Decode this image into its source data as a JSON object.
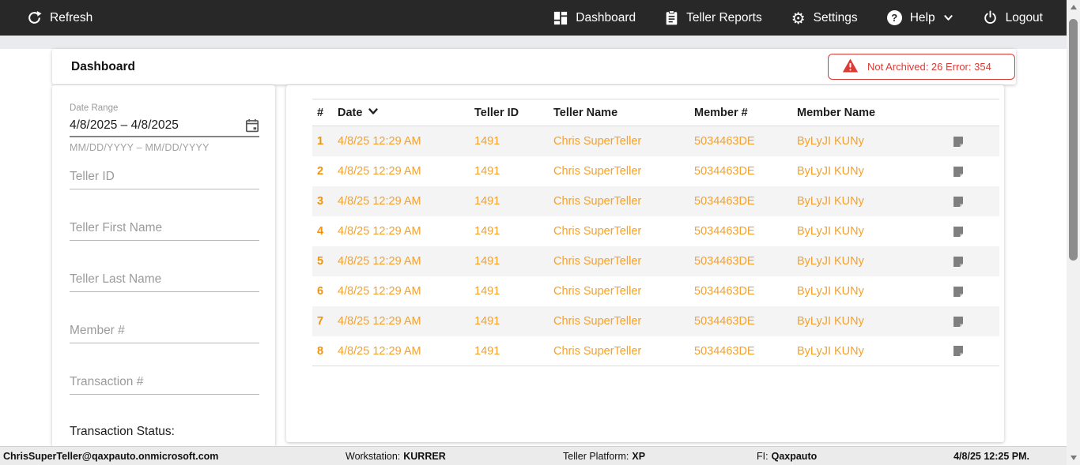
{
  "colors": {
    "nav_bg": "#282828",
    "accent_orange": "#f5a12b",
    "row_number_orange": "#f0930c",
    "alert_red": "#d93a34"
  },
  "nav": {
    "refresh_label": "Refresh",
    "items": [
      {
        "label": "Dashboard",
        "icon": "dashboard-grid-icon"
      },
      {
        "label": "Teller Reports",
        "icon": "clipboard-icon"
      },
      {
        "label": "Settings",
        "icon": "gear-icon"
      },
      {
        "label": "Help",
        "icon": "help-circle-icon"
      },
      {
        "label": "Logout",
        "icon": "power-icon"
      }
    ]
  },
  "header": {
    "title": "Dashboard",
    "alert_text": "Not Archived: 26  Error: 354"
  },
  "filters": {
    "date_range": {
      "label": "Date Range",
      "value": "4/8/2025 – 4/8/2025",
      "hint": "MM/DD/YYYY – MM/DD/YYYY"
    },
    "fields": [
      {
        "placeholder": "Teller ID"
      },
      {
        "placeholder": "Teller First Name"
      },
      {
        "placeholder": "Teller Last Name"
      },
      {
        "placeholder": "Member #"
      },
      {
        "placeholder": "Transaction #"
      }
    ],
    "transaction_status_label": "Transaction Status:"
  },
  "table": {
    "columns": [
      "#",
      "Date",
      "Teller ID",
      "Teller Name",
      "Member #",
      "Member Name"
    ],
    "sorted_column": "Date",
    "sort_direction": "desc",
    "rows": [
      {
        "num": "1",
        "date": "4/8/25 12:29 AM",
        "teller_id": "1491",
        "teller_name": "Chris SuperTeller",
        "member_num": "5034463DE",
        "member_name": "ByLyJI KUNy"
      },
      {
        "num": "2",
        "date": "4/8/25 12:29 AM",
        "teller_id": "1491",
        "teller_name": "Chris SuperTeller",
        "member_num": "5034463DE",
        "member_name": "ByLyJI KUNy"
      },
      {
        "num": "3",
        "date": "4/8/25 12:29 AM",
        "teller_id": "1491",
        "teller_name": "Chris SuperTeller",
        "member_num": "5034463DE",
        "member_name": "ByLyJI KUNy"
      },
      {
        "num": "4",
        "date": "4/8/25 12:29 AM",
        "teller_id": "1491",
        "teller_name": "Chris SuperTeller",
        "member_num": "5034463DE",
        "member_name": "ByLyJI KUNy"
      },
      {
        "num": "5",
        "date": "4/8/25 12:29 AM",
        "teller_id": "1491",
        "teller_name": "Chris SuperTeller",
        "member_num": "5034463DE",
        "member_name": "ByLyJI KUNy"
      },
      {
        "num": "6",
        "date": "4/8/25 12:29 AM",
        "teller_id": "1491",
        "teller_name": "Chris SuperTeller",
        "member_num": "5034463DE",
        "member_name": "ByLyJI KUNy"
      },
      {
        "num": "7",
        "date": "4/8/25 12:29 AM",
        "teller_id": "1491",
        "teller_name": "Chris SuperTeller",
        "member_num": "5034463DE",
        "member_name": "ByLyJI KUNy"
      },
      {
        "num": "8",
        "date": "4/8/25 12:29 AM",
        "teller_id": "1491",
        "teller_name": "Chris SuperTeller",
        "member_num": "5034463DE",
        "member_name": "ByLyJI KUNy"
      }
    ]
  },
  "status_bar": {
    "user": "ChrisSuperTeller@qaxpauto.onmicrosoft.com",
    "workstation_label": "Workstation:",
    "workstation": "KURRER",
    "platform_label": "Teller Platform:",
    "platform": "XP",
    "fi_label": "FI:",
    "fi": "Qaxpauto",
    "datetime": "4/8/25 12:25 PM."
  }
}
